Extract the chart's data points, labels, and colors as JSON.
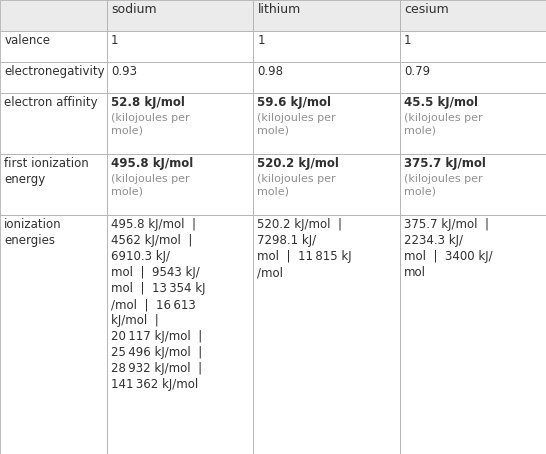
{
  "col_headers": [
    "",
    "sodium",
    "lithium",
    "cesium"
  ],
  "rows": [
    {
      "label": "valence",
      "cells": [
        "1",
        "1",
        "1"
      ]
    },
    {
      "label": "electronegativity",
      "cells": [
        "0.93",
        "0.98",
        "0.79"
      ]
    },
    {
      "label": "electron affinity",
      "cells_main": [
        "52.8 kJ/mol",
        "59.6 kJ/mol",
        "45.5 kJ/mol"
      ],
      "cells_sub": [
        "(kilojoules per\nmole)",
        "(kilojoules per\nmole)",
        "(kilojoules per\nmole)"
      ]
    },
    {
      "label": "first ionization\nenergy",
      "cells_main": [
        "495.8 kJ/mol",
        "520.2 kJ/mol",
        "375.7 kJ/mol"
      ],
      "cells_sub": [
        "(kilojoules per\nmole)",
        "(kilojoules per\nmole)",
        "(kilojoules per\nmole)"
      ]
    },
    {
      "label": "ionization\nenergies",
      "cells": [
        "495.8 kJ/mol  |\n4562 kJ/mol  |\n6910.3 kJ/\nmol  |  9543 kJ/\nmol  |  13 354 kJ\n/mol  |  16 613\nkJ/mol  |\n20 117 kJ/mol  |\n25 496 kJ/mol  |\n28 932 kJ/mol  |\n141 362 kJ/mol",
        "520.2 kJ/mol  |\n7298.1 kJ/\nmol  |  11 815 kJ\n/mol",
        "375.7 kJ/mol  |\n2234.3 kJ/\nmol  |  3400 kJ/\nmol"
      ]
    }
  ],
  "header_bg": "#ebebeb",
  "cell_bg": "#ffffff",
  "border_color": "#b0b0b0",
  "text_dark": "#303030",
  "text_gray": "#909090",
  "header_fontsize": 9.0,
  "label_fontsize": 8.5,
  "cell_fontsize": 8.5,
  "sub_fontsize": 8.0,
  "fig_width": 5.46,
  "fig_height": 4.54,
  "dpi": 100
}
